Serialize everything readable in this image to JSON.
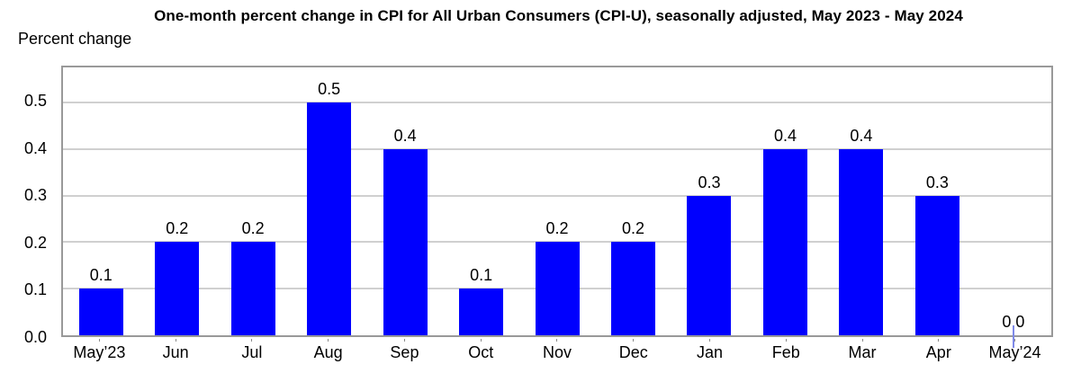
{
  "title": "One-month percent change in CPI for All Urban Consumers (CPI-U), seasonally adjusted, May 2023 - May 2024",
  "y_axis_label": "Percent change",
  "colors": {
    "bar": "#0000fe",
    "gridline": "#d0d0d0",
    "frame": "#999999",
    "zero_marker": "#7f8ae8",
    "text": "#000000"
  },
  "chart_data": {
    "type": "bar",
    "title": "One-month percent change in CPI for All Urban Consumers (CPI-U), seasonally adjusted, May 2023 - May 2024",
    "xlabel": "",
    "ylabel": "Percent change",
    "categories": [
      "May’23",
      "Jun",
      "Jul",
      "Aug",
      "Sep",
      "Oct",
      "Nov",
      "Dec",
      "Jan",
      "Feb",
      "Mar",
      "Apr",
      "May’24"
    ],
    "values": [
      0.1,
      0.2,
      0.2,
      0.5,
      0.4,
      0.1,
      0.2,
      0.2,
      0.3,
      0.4,
      0.4,
      0.3,
      0.0
    ],
    "data_labels": [
      "0.1",
      "0.2",
      "0.2",
      "0.5",
      "0.4",
      "0.1",
      "0.2",
      "0.2",
      "0.3",
      "0.4",
      "0.4",
      "0.3",
      "0.0"
    ],
    "yticks": [
      0.0,
      0.1,
      0.2,
      0.3,
      0.4,
      0.5
    ],
    "ytick_labels": [
      "0.0",
      "0.1",
      "0.2",
      "0.3",
      "0.4",
      "0.5"
    ],
    "ylim": [
      0,
      0.575
    ],
    "grid": true,
    "legend": false
  }
}
